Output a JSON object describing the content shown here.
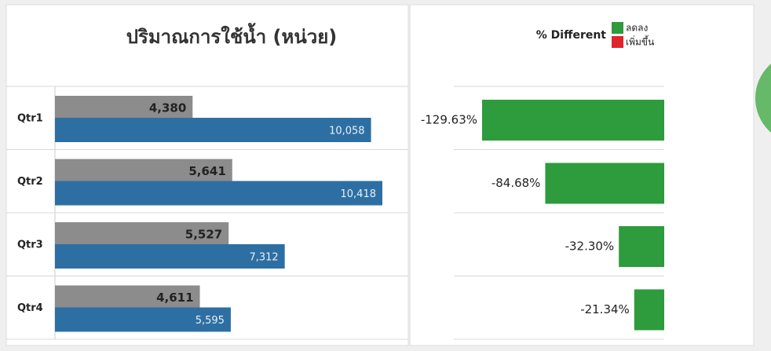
{
  "chart_data": [
    {
      "type": "hbar",
      "title": "ปริมาณการใช้น้ำ (หน่วย)",
      "categories": [
        "Qtr1",
        "Qtr2",
        "Qtr3",
        "Qtr4"
      ],
      "series": [
        {
          "color": "#8c8c8c",
          "values": [
            4380,
            5641,
            5527,
            4611
          ],
          "value_labels": [
            "4,380",
            "5,641",
            "5,527",
            "4,611"
          ]
        },
        {
          "color": "#2e6fa3",
          "values": [
            10058,
            10418,
            7312,
            5595
          ],
          "value_labels": [
            "10,058",
            "10,418",
            "7,312",
            "5,595"
          ]
        }
      ]
    },
    {
      "type": "hbar-diff",
      "title": "% Different",
      "values": [
        -129.63,
        -84.68,
        -32.3,
        -21.34
      ],
      "value_labels": [
        "-129.63%",
        "-84.68%",
        "-32.30%",
        "-21.34%"
      ],
      "legend": [
        {
          "name": "ลดลง",
          "color": "#2e9b3c"
        },
        {
          "name": "เพิ่มขึ้น",
          "color": "#e0242c"
        }
      ]
    }
  ]
}
